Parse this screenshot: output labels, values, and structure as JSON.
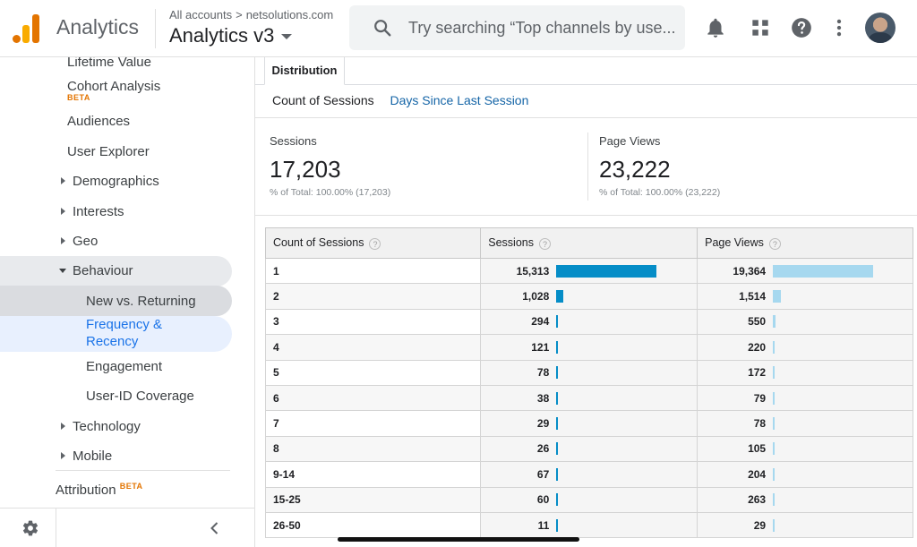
{
  "header": {
    "app_title": "Analytics",
    "breadcrumb_root": "All accounts",
    "breadcrumb_sep": ">",
    "breadcrumb_account": "netsolutions.com",
    "property_name": "Analytics v3",
    "search_placeholder": "Try searching “Top channels by use...",
    "icons": [
      "bell-icon",
      "apps-grid-icon",
      "help-icon",
      "more-vert-icon"
    ]
  },
  "sidebar": {
    "lifetime_value": "Lifetime Value",
    "cohort_analysis": "Cohort Analysis",
    "cohort_badge": "BETA",
    "audiences": "Audiences",
    "user_explorer": "User Explorer",
    "demographics": "Demographics",
    "interests": "Interests",
    "geo": "Geo",
    "behaviour": "Behaviour",
    "new_vs_returning": "New vs. Returning",
    "frequency_recency_1": "Frequency &",
    "frequency_recency_2": "Recency",
    "engagement": "Engagement",
    "user_id_coverage": "User-ID Coverage",
    "technology": "Technology",
    "mobile": "Mobile",
    "attribution": "Attribution",
    "attribution_badge": "BETA"
  },
  "main": {
    "tab_distribution": "Distribution",
    "subtab_count": "Count of Sessions",
    "subtab_days": "Days Since Last Session",
    "metrics": {
      "sessions_label": "Sessions",
      "sessions_value": "17,203",
      "sessions_total": "% of Total: 100.00% (17,203)",
      "pageviews_label": "Page Views",
      "pageviews_value": "23,222",
      "pageviews_total": "% of Total: 100.00% (23,222)"
    },
    "table": {
      "col_count": "Count of Sessions",
      "col_sessions": "Sessions",
      "col_pageviews": "Page Views",
      "help_glyph": "?",
      "rows": [
        {
          "bucket": "1",
          "sessions": "15,313",
          "sessions_n": 15313,
          "pageviews": "19,364",
          "pageviews_n": 19364
        },
        {
          "bucket": "2",
          "sessions": "1,028",
          "sessions_n": 1028,
          "pageviews": "1,514",
          "pageviews_n": 1514
        },
        {
          "bucket": "3",
          "sessions": "294",
          "sessions_n": 294,
          "pageviews": "550",
          "pageviews_n": 550
        },
        {
          "bucket": "4",
          "sessions": "121",
          "sessions_n": 121,
          "pageviews": "220",
          "pageviews_n": 220
        },
        {
          "bucket": "5",
          "sessions": "78",
          "sessions_n": 78,
          "pageviews": "172",
          "pageviews_n": 172
        },
        {
          "bucket": "6",
          "sessions": "38",
          "sessions_n": 38,
          "pageviews": "79",
          "pageviews_n": 79
        },
        {
          "bucket": "7",
          "sessions": "29",
          "sessions_n": 29,
          "pageviews": "78",
          "pageviews_n": 78
        },
        {
          "bucket": "8",
          "sessions": "26",
          "sessions_n": 26,
          "pageviews": "105",
          "pageviews_n": 105
        },
        {
          "bucket": "9-14",
          "sessions": "67",
          "sessions_n": 67,
          "pageviews": "204",
          "pageviews_n": 204
        },
        {
          "bucket": "15-25",
          "sessions": "60",
          "sessions_n": 60,
          "pageviews": "263",
          "pageviews_n": 263
        },
        {
          "bucket": "26-50",
          "sessions": "11",
          "sessions_n": 11,
          "pageviews": "29",
          "pageviews_n": 29
        }
      ]
    }
  },
  "colors": {
    "sessions_bar": "#058dc7",
    "pageviews_bar": "#a6d8ef",
    "logo_orange": "#e37400",
    "logo_yellow": "#f9ab00"
  }
}
